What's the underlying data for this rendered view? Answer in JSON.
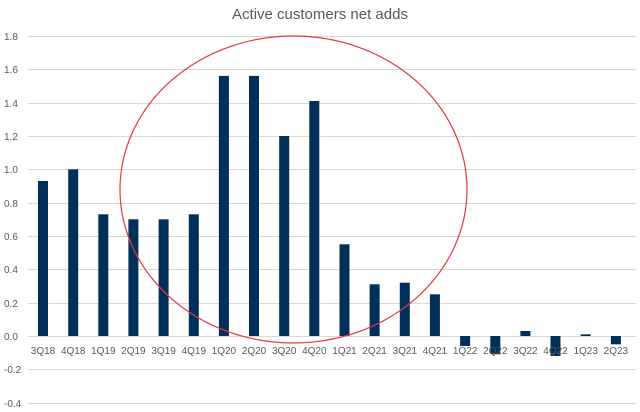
{
  "chart_data": {
    "type": "bar",
    "title": "Active customers net adds",
    "xlabel": "",
    "ylabel": "",
    "ylim": [
      -0.4,
      1.8
    ],
    "yticks": [
      "1.8",
      "1.6",
      "1.4",
      "1.2",
      "1.0",
      "0.8",
      "0.6",
      "0.4",
      "0.2",
      "0.0",
      "-0.2",
      "-0.4"
    ],
    "grid": true,
    "legend": null,
    "categories": [
      "3Q18",
      "4Q18",
      "1Q19",
      "2Q19",
      "3Q19",
      "4Q19",
      "1Q20",
      "2Q20",
      "3Q20",
      "4Q20",
      "1Q21",
      "2Q21",
      "3Q21",
      "4Q21",
      "1Q22",
      "2Q22",
      "3Q22",
      "4Q22",
      "1Q23",
      "2Q23"
    ],
    "series": [
      {
        "name": "Active customers net adds",
        "color": "#00305A",
        "values": [
          0.93,
          1.0,
          0.73,
          0.7,
          0.7,
          0.73,
          1.56,
          1.56,
          1.2,
          1.41,
          0.55,
          0.31,
          0.32,
          0.25,
          -0.06,
          -0.11,
          0.03,
          -0.12,
          0.01,
          -0.05
        ]
      }
    ],
    "annotations": [
      {
        "type": "ellipse",
        "color": "#E8383D",
        "description": "Red ellipse highlighting 2Q19 through 3Q21 spike"
      }
    ]
  },
  "colors": {
    "bar": "#00305A",
    "grid": "#D9D9D9",
    "text": "#595959",
    "annotation": "#E8383D"
  }
}
